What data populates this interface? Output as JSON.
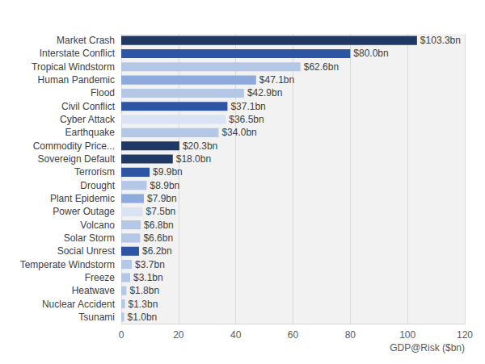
{
  "chart_data": {
    "type": "bar",
    "orientation": "horizontal",
    "categories": [
      "Market Crash",
      "Interstate Conflict",
      "Tropical Windstorm",
      "Human Pandemic",
      "Flood",
      "Civil Conflict",
      "Cyber Attack",
      "Earthquake",
      "Commodity Price...",
      "Sovereign Default",
      "Terrorism",
      "Drought",
      "Plant Epidemic",
      "Power Outage",
      "Volcano",
      "Solar Storm",
      "Social Unrest",
      "Temperate Windstorm",
      "Freeze",
      "Heatwave",
      "Nuclear Accident",
      "Tsunami"
    ],
    "values": [
      103.3,
      80.0,
      62.6,
      47.1,
      42.9,
      37.1,
      36.5,
      34.0,
      20.3,
      18.0,
      9.9,
      8.9,
      7.9,
      7.5,
      6.8,
      6.6,
      6.2,
      3.7,
      3.1,
      1.8,
      1.3,
      1.0
    ],
    "value_labels": [
      "$103.3bn",
      "$80.0bn",
      "$62.6bn",
      "$47.1bn",
      "$42.9bn",
      "$37.1bn",
      "$36.5bn",
      "$34.0bn",
      "$20.3bn",
      "$18.0bn",
      "$9.9bn",
      "$8.9bn",
      "$7.9bn",
      "$7.5bn",
      "$6.8bn",
      "$6.6bn",
      "$6.2bn",
      "$3.7bn",
      "$3.1bn",
      "$1.8bn",
      "$1.3bn",
      "$1.0bn"
    ],
    "colors": [
      "#1f3864",
      "#2e55a3",
      "#b4c7e7",
      "#8ea9db",
      "#b4c7e7",
      "#2e55a3",
      "#dae3f3",
      "#b4c7e7",
      "#1f3864",
      "#1f3864",
      "#2e55a3",
      "#b4c7e7",
      "#8ea9db",
      "#dae3f3",
      "#b4c7e7",
      "#b4c7e7",
      "#2e55a3",
      "#b4c7e7",
      "#b4c7e7",
      "#b4c7e7",
      "#b4c7e7",
      "#b4c7e7"
    ],
    "xlabel": "GDP@Risk ($bn)",
    "xlim": [
      0,
      120
    ],
    "xticks": [
      0,
      20,
      40,
      60,
      80,
      100,
      120
    ],
    "grid": true,
    "data_labels": true
  }
}
